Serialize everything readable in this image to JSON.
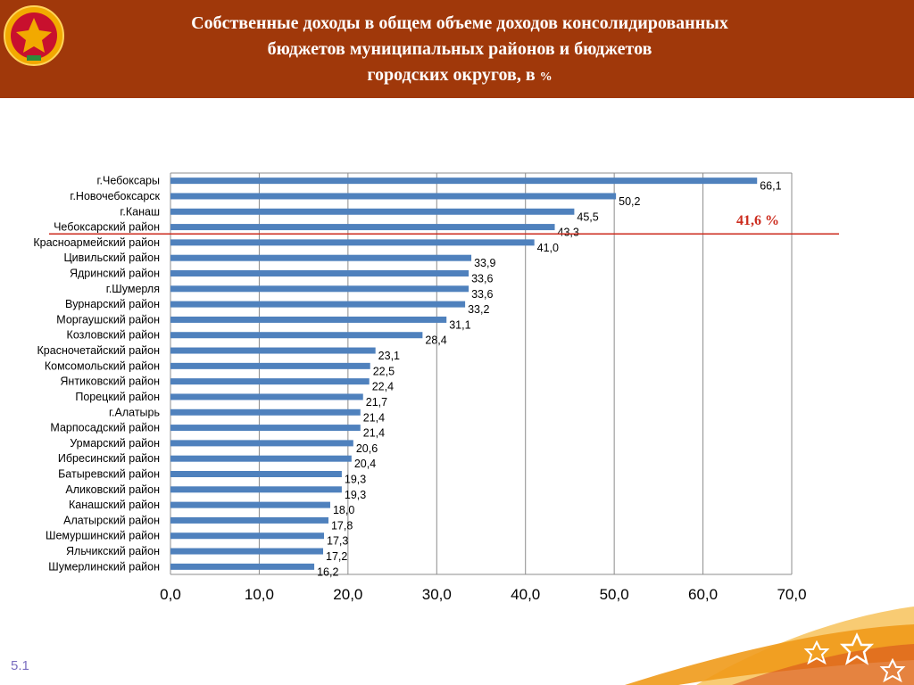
{
  "header": {
    "title_line1": "Собственные доходы в общем объеме доходов консолидированных",
    "title_line2": "бюджетов муниципальных районов и бюджетов",
    "title_line3_main": "городских округов, в",
    "title_line3_unit": "%"
  },
  "slide_number": "5.1",
  "colors": {
    "header_bg": "#a0380a",
    "bar": "#4f81bd",
    "reference_line": "#cc2b1d",
    "grid": "#8c8c8c",
    "accent_gold": "#f2a900"
  },
  "icons": {
    "emblem": "chuvash-coat-of-arms-icon",
    "decoration": "ornamental-star-icons"
  },
  "chart_data": {
    "type": "bar",
    "orientation": "horizontal",
    "title": "",
    "xlabel": "",
    "ylabel": "",
    "xlim": [
      0,
      70
    ],
    "x_ticks": [
      "0,0",
      "10,0",
      "20,0",
      "30,0",
      "40,0",
      "50,0",
      "60,0",
      "70,0"
    ],
    "grid": "vertical",
    "categories": [
      "г.Чебоксары",
      "г.Новочебоксарск",
      "г.Канаш",
      "Чебоксарский район",
      "Красноармейский район",
      "Цивильский район",
      "Ядринский район",
      "г.Шумерля",
      "Вурнарский район",
      "Моргаушский район",
      "Козловский район",
      "Красночетайский район",
      "Комсомольский район",
      "Янтиковский район",
      "Порецкий район",
      "г.Алатырь",
      "Марпосадский район",
      "Урмарский район",
      "Ибресинский район",
      "Батыревский район",
      "Аликовский район",
      "Канашский район",
      "Алатырский район",
      "Шемуршинский район",
      "Яльчикский район",
      "Шумерлинский район"
    ],
    "values": [
      66.1,
      50.2,
      45.5,
      43.3,
      41.0,
      33.9,
      33.6,
      33.6,
      33.2,
      31.1,
      28.4,
      23.1,
      22.5,
      22.4,
      21.7,
      21.4,
      21.4,
      20.6,
      20.4,
      19.3,
      19.3,
      18.0,
      17.8,
      17.3,
      17.2,
      16.2
    ],
    "value_labels": [
      "66,1",
      "50,2",
      "45,5",
      "43,3",
      "41,0",
      "33,9",
      "33,6",
      "33,6",
      "33,2",
      "31,1",
      "28,4",
      "23,1",
      "22,5",
      "22,4",
      "21,7",
      "21,4",
      "21,4",
      "20,6",
      "20,4",
      "19,3",
      "19,3",
      "18,0",
      "17,8",
      "17,3",
      "17,2",
      "16,2"
    ],
    "reference_line": {
      "value": 41.6,
      "label": "41,6 %"
    }
  }
}
